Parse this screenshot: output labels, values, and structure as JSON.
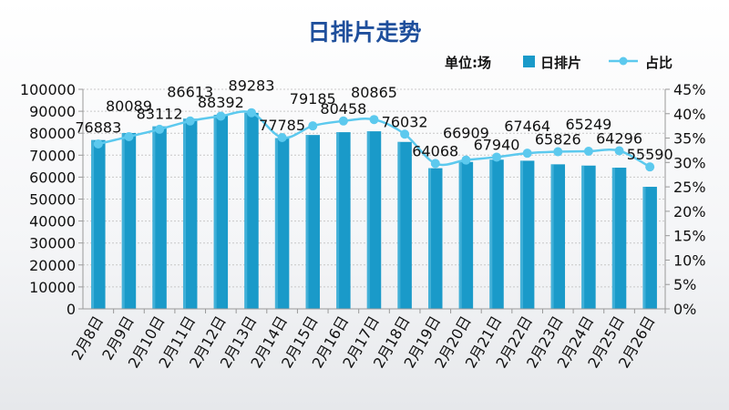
{
  "chart_data": {
    "type": "bar+line",
    "title": "日排片走势",
    "unit_label": "单位:场",
    "categories": [
      "2月8日",
      "2月9日",
      "2月10日",
      "2月11日",
      "2月12日",
      "2月13日",
      "2月14日",
      "2月15日",
      "2月16日",
      "2月17日",
      "2月18日",
      "2月19日",
      "2月20日",
      "2月21日",
      "2月22日",
      "2月23日",
      "2月24日",
      "2月25日",
      "2月26日"
    ],
    "series": [
      {
        "name": "日排片",
        "type": "bar",
        "axis": "left",
        "color": "#1a9ac9",
        "values": [
          76883,
          80089,
          83112,
          86613,
          88392,
          89283,
          77785,
          79185,
          80458,
          80865,
          76032,
          64068,
          66909,
          67940,
          67464,
          65826,
          65249,
          64296,
          55590
        ]
      },
      {
        "name": "占比",
        "type": "line",
        "axis": "right",
        "color": "#5cc9ee",
        "values": [
          33.8,
          35.3,
          36.8,
          38.5,
          39.5,
          40.2,
          35.1,
          37.5,
          38.5,
          38.8,
          35.8,
          29.8,
          30.5,
          31.1,
          31.9,
          32.2,
          32.3,
          32.4,
          29.1
        ]
      }
    ],
    "left_axis": {
      "ylim": [
        0,
        100000
      ],
      "ticks": [
        "0",
        "10000",
        "20000",
        "30000",
        "40000",
        "50000",
        "60000",
        "70000",
        "80000",
        "90000",
        "100000"
      ]
    },
    "right_axis": {
      "ylim": [
        0,
        45
      ],
      "ticks": [
        "0%",
        "5%",
        "10%",
        "15%",
        "20%",
        "25%",
        "30%",
        "35%",
        "40%",
        "45%"
      ]
    },
    "grid": "horizontal dotted",
    "legend": "top-right",
    "data_labels": true,
    "colors": {
      "title": "#1f4f9c",
      "text": "#111111"
    }
  }
}
